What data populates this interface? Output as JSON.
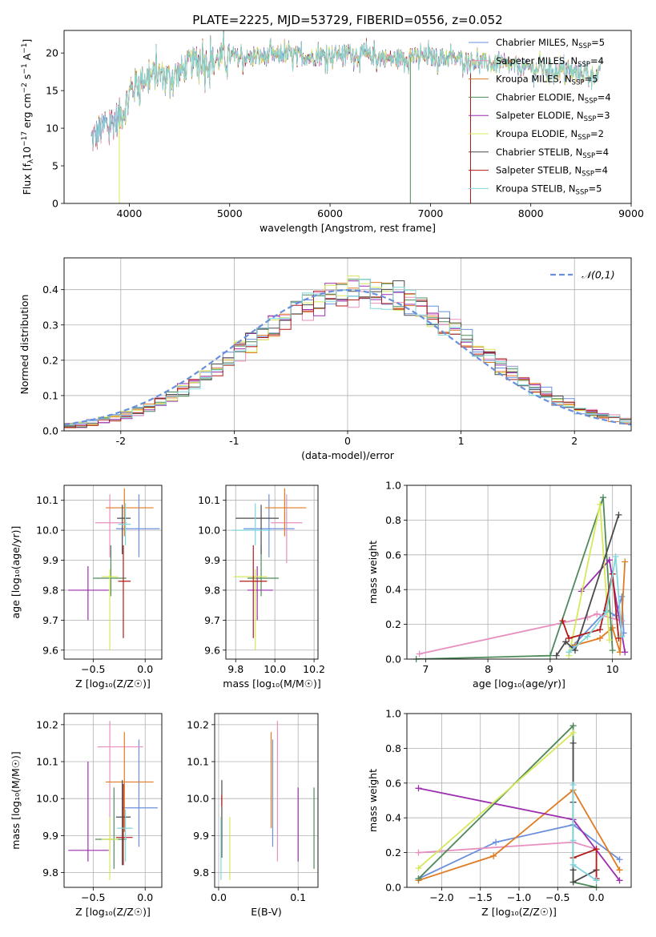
{
  "figure": {
    "title": "PLATE=2225, MJD=53729, FIBERID=0556, z=0.052"
  },
  "colors": {
    "chabrier_miles": "#6a8fdc",
    "salpeter_miles": "#e88fbf",
    "kroupa_miles": "#e07b22",
    "chabrier_elodie": "#4f8a5a",
    "salpeter_elodie": "#9b2fae",
    "kroupa_elodie": "#d6e85a",
    "chabrier_stelib": "#4a4a4a",
    "salpeter_stelib": "#b21a1a",
    "kroupa_stelib": "#7fd6dc",
    "normal": "#6a8fdc"
  },
  "chart_data": [
    {
      "id": "spectrum",
      "type": "line",
      "xlabel": "wavelength [Angstrom, rest frame]",
      "ylabel_parts": [
        "Flux [f",
        "λ",
        "10",
        "−17",
        " erg cm",
        "−2",
        " s",
        "−1",
        " A",
        "−1",
        "]"
      ],
      "xlim": [
        3350,
        9000
      ],
      "ylim": [
        0,
        23
      ],
      "xticks": [
        4000,
        5000,
        6000,
        7000,
        8000,
        9000
      ],
      "yticks": [
        0,
        5,
        10,
        15,
        20
      ],
      "legend": [
        {
          "key": "chabrier_miles",
          "base": "Chabrier MILES, N",
          "sub": "SSP",
          "val": "=5"
        },
        {
          "key": "salpeter_miles",
          "base": "Salpeter MILES, N",
          "sub": "SSP",
          "val": "=4"
        },
        {
          "key": "kroupa_miles",
          "base": "Kroupa MILES, N",
          "sub": "SSP",
          "val": "=5"
        },
        {
          "key": "chabrier_elodie",
          "base": "Chabrier ELODIE, N",
          "sub": "SSP",
          "val": "=4"
        },
        {
          "key": "salpeter_elodie",
          "base": "Salpeter ELODIE, N",
          "sub": "SSP",
          "val": "=3"
        },
        {
          "key": "kroupa_elodie",
          "base": "Kroupa ELODIE, N",
          "sub": "SSP",
          "val": "=2"
        },
        {
          "key": "chabrier_stelib",
          "base": "Chabrier STELIB, N",
          "sub": "SSP",
          "val": "=4"
        },
        {
          "key": "salpeter_stelib",
          "base": "Salpeter STELIB, N",
          "sub": "SSP",
          "val": "=4"
        },
        {
          "key": "kroupa_stelib",
          "base": "Kroupa STELIB, N",
          "sub": "SSP",
          "val": "=5"
        }
      ],
      "continuum": {
        "x": [
          3620,
          3700,
          3800,
          3900,
          3950,
          4000,
          4050,
          4100,
          4200,
          4300,
          4400,
          4500,
          4600,
          4700,
          4800,
          4900,
          5000,
          5200,
          5400,
          5600,
          5800,
          6000,
          6200,
          6400,
          6600,
          6800,
          7000,
          7200,
          7400,
          7600,
          7800,
          8000,
          8200,
          8400,
          8600,
          8700
        ],
        "y": [
          8.5,
          9.5,
          10.5,
          11.5,
          12.5,
          14.5,
          15.5,
          16.5,
          16.8,
          17.2,
          16.8,
          17.5,
          18.5,
          19.0,
          18.8,
          19.3,
          19.5,
          19.3,
          19.6,
          19.8,
          19.4,
          19.8,
          20.0,
          19.6,
          19.2,
          19.5,
          19.5,
          19.3,
          19.0,
          18.6,
          18.3,
          18.0,
          17.8,
          17.5,
          17.2,
          17.0
        ]
      },
      "drops": [
        {
          "key": "kroupa_elodie",
          "x": 3900
        },
        {
          "key": "chabrier_elodie",
          "x": 6800
        },
        {
          "key": "salpeter_stelib",
          "x": 7400
        }
      ]
    },
    {
      "id": "residuals",
      "type": "histogram",
      "xlabel": "(data-model)/error",
      "ylabel": "Normed distribution",
      "xlim": [
        -2.5,
        2.5
      ],
      "ylim": [
        0,
        0.49
      ],
      "xticks": [
        -2,
        -1,
        0,
        1,
        2
      ],
      "yticks": [
        0.0,
        0.1,
        0.2,
        0.3,
        0.4
      ],
      "ytick_labels": [
        "0.0",
        "0.1",
        "0.2",
        "0.3",
        "0.4"
      ],
      "legend_label": "𝒩(0,1)",
      "bin_width": 0.1,
      "bin_start": -2.5,
      "series_keys": [
        "chabrier_miles",
        "salpeter_miles",
        "kroupa_miles",
        "chabrier_elodie",
        "salpeter_elodie",
        "kroupa_elodie",
        "chabrier_stelib",
        "salpeter_stelib",
        "kroupa_stelib"
      ]
    },
    {
      "id": "age_vs_Z",
      "type": "errorbar",
      "xlabel": "Z [log₁₀(Z/Z☉)]",
      "ylabel": "age  [log₁₀(age/yr)]",
      "xlim": [
        -0.78,
        0.16
      ],
      "ylim": [
        9.57,
        10.15
      ],
      "xticks": [
        -0.5,
        0.0
      ],
      "xtick_labels": [
        "−0.5",
        "0.0"
      ],
      "yticks": [
        9.6,
        9.7,
        9.8,
        9.9,
        10.0,
        10.1
      ],
      "ytick_labels": [
        "9.6",
        "9.7",
        "9.8",
        "9.9",
        "10.0",
        "10.1"
      ],
      "points": [
        {
          "key": "chabrier_miles",
          "x": -0.06,
          "y": 10.005,
          "xlo": -0.28,
          "xhi": 0.14,
          "ylo": 9.91,
          "yhi": 10.12
        },
        {
          "key": "salpeter_miles",
          "x": -0.34,
          "y": 10.025,
          "xlo": -0.48,
          "xhi": -0.18,
          "ylo": 9.91,
          "yhi": 10.12
        },
        {
          "key": "kroupa_miles",
          "x": -0.2,
          "y": 10.075,
          "xlo": -0.38,
          "xhi": 0.08,
          "ylo": 9.98,
          "yhi": 10.14
        },
        {
          "key": "chabrier_elodie",
          "x": -0.33,
          "y": 9.84,
          "xlo": -0.5,
          "xhi": -0.18,
          "ylo": 9.78,
          "yhi": 9.95
        },
        {
          "key": "salpeter_elodie",
          "x": -0.55,
          "y": 9.8,
          "xlo": -0.74,
          "xhi": -0.35,
          "ylo": 9.7,
          "yhi": 9.88
        },
        {
          "key": "kroupa_elodie",
          "x": -0.34,
          "y": 9.845,
          "xlo": -0.42,
          "xhi": -0.26,
          "ylo": 9.6,
          "yhi": 9.87
        },
        {
          "key": "chabrier_stelib",
          "x": -0.22,
          "y": 10.04,
          "xlo": -0.27,
          "xhi": -0.14,
          "ylo": 9.92,
          "yhi": 10.085
        },
        {
          "key": "salpeter_stelib",
          "x": -0.21,
          "y": 9.83,
          "xlo": -0.26,
          "xhi": -0.14,
          "ylo": 9.64,
          "yhi": 9.95
        },
        {
          "key": "kroupa_stelib",
          "x": -0.19,
          "y": 10.02,
          "xlo": -0.26,
          "xhi": -0.14,
          "ylo": 9.95,
          "yhi": 10.09
        }
      ]
    },
    {
      "id": "age_vs_mass",
      "type": "errorbar",
      "xlabel": "mass [log₁₀(M/M☉)]",
      "ylabel": "",
      "xlim": [
        9.75,
        10.22
      ],
      "ylim": [
        9.57,
        10.15
      ],
      "xticks": [
        9.8,
        10.0,
        10.2
      ],
      "xtick_labels": [
        "9.8",
        "10.0",
        "10.2"
      ],
      "yticks": [
        9.6,
        9.7,
        9.8,
        9.9,
        10.0,
        10.1
      ],
      "ytick_labels": [
        "9.6",
        "9.7",
        "9.8",
        "9.9",
        "10.0",
        "10.1"
      ],
      "points": [
        {
          "key": "chabrier_miles",
          "x": 9.97,
          "y": 10.005,
          "xlo": 9.84,
          "xhi": 10.1,
          "ylo": 9.91,
          "yhi": 10.12
        },
        {
          "key": "salpeter_miles",
          "x": 10.06,
          "y": 10.025,
          "xlo": 9.98,
          "xhi": 10.14,
          "ylo": 9.89,
          "yhi": 10.12
        },
        {
          "key": "kroupa_miles",
          "x": 10.05,
          "y": 10.075,
          "xlo": 9.95,
          "xhi": 10.16,
          "ylo": 9.98,
          "yhi": 10.14
        },
        {
          "key": "chabrier_elodie",
          "x": 9.93,
          "y": 9.84,
          "xlo": 9.86,
          "xhi": 10.02,
          "ylo": 9.78,
          "yhi": 9.95
        },
        {
          "key": "salpeter_elodie",
          "x": 9.91,
          "y": 9.8,
          "xlo": 9.86,
          "xhi": 9.99,
          "ylo": 9.7,
          "yhi": 9.88
        },
        {
          "key": "kroupa_elodie",
          "x": 9.9,
          "y": 9.845,
          "xlo": 9.79,
          "xhi": 9.96,
          "ylo": 9.6,
          "yhi": 9.87
        },
        {
          "key": "chabrier_stelib",
          "x": 9.93,
          "y": 10.04,
          "xlo": 9.8,
          "xhi": 10.02,
          "ylo": 9.92,
          "yhi": 10.085
        },
        {
          "key": "salpeter_stelib",
          "x": 9.89,
          "y": 9.83,
          "xlo": 9.82,
          "xhi": 9.96,
          "ylo": 9.64,
          "yhi": 9.95
        },
        {
          "key": "kroupa_stelib",
          "x": 9.9,
          "y": 10.0,
          "xlo": 9.78,
          "xhi": 9.98,
          "ylo": 9.95,
          "yhi": 10.09
        }
      ]
    },
    {
      "id": "mw_vs_age",
      "type": "line",
      "xlabel": "age  [log₁₀(age/yr)]",
      "ylabel": "mass weight",
      "xlim": [
        6.7,
        10.3
      ],
      "ylim": [
        0,
        1.0
      ],
      "xticks": [
        7,
        8,
        9,
        10
      ],
      "xtick_labels": [
        "7",
        "8",
        "9",
        "10"
      ],
      "yticks": [
        0.0,
        0.2,
        0.4,
        0.6,
        0.8,
        1.0
      ],
      "ytick_labels": [
        "0.0",
        "0.2",
        "0.4",
        "0.6",
        "0.8",
        "1.0"
      ],
      "series": [
        {
          "key": "chabrier_miles",
          "x": [
            9.35,
            9.9,
            10.05,
            10.15,
            10.18
          ],
          "y": [
            0.07,
            0.28,
            0.25,
            0.36,
            0.15
          ]
        },
        {
          "key": "salpeter_miles",
          "x": [
            6.9,
            9.6,
            9.75,
            10.15
          ],
          "y": [
            0.03,
            0.24,
            0.26,
            0.22
          ]
        },
        {
          "key": "kroupa_miles",
          "x": [
            9.4,
            9.8,
            10.0,
            10.12,
            10.2
          ],
          "y": [
            0.08,
            0.12,
            0.18,
            0.04,
            0.56
          ]
        },
        {
          "key": "chabrier_elodie",
          "x": [
            6.85,
            9.0,
            9.85,
            10.0
          ],
          "y": [
            0.0,
            0.02,
            0.93,
            0.05
          ]
        },
        {
          "key": "salpeter_elodie",
          "x": [
            9.5,
            9.95,
            10.2
          ],
          "y": [
            0.39,
            0.57,
            0.04
          ]
        },
        {
          "key": "kroupa_elodie",
          "x": [
            9.3,
            9.8,
            9.95
          ],
          "y": [
            0.02,
            0.89,
            0.11
          ]
        },
        {
          "key": "chabrier_stelib",
          "x": [
            9.1,
            9.25,
            9.4,
            10.1
          ],
          "y": [
            0.02,
            0.1,
            0.05,
            0.83
          ]
        },
        {
          "key": "salpeter_stelib",
          "x": [
            9.2,
            9.3,
            9.8,
            10.0,
            10.1
          ],
          "y": [
            0.22,
            0.12,
            0.17,
            0.49,
            0.12
          ]
        },
        {
          "key": "kroupa_stelib",
          "x": [
            9.3,
            9.6,
            9.9,
            10.05,
            10.15
          ],
          "y": [
            0.04,
            0.13,
            0.27,
            0.59,
            0.13
          ]
        }
      ]
    },
    {
      "id": "mass_vs_Z",
      "type": "errorbar",
      "xlabel": "Z [log₁₀(Z/Z☉)]",
      "ylabel": "mass [log₁₀(M/M☉)]",
      "xlim": [
        -0.78,
        0.16
      ],
      "ylim": [
        9.76,
        10.23
      ],
      "xticks": [
        -0.5,
        0.0
      ],
      "xtick_labels": [
        "−0.5",
        "0.0"
      ],
      "yticks": [
        9.8,
        9.9,
        10.0,
        10.1,
        10.2
      ],
      "ytick_labels": [
        "9.8",
        "9.9",
        "10.0",
        "10.1",
        "10.2"
      ],
      "points": [
        {
          "key": "chabrier_miles",
          "x": -0.06,
          "y": 9.975,
          "xlo": -0.22,
          "xhi": 0.12,
          "ylo": 9.87,
          "yhi": 10.16
        },
        {
          "key": "salpeter_miles",
          "x": -0.34,
          "y": 10.14,
          "xlo": -0.46,
          "xhi": -0.02,
          "ylo": 9.85,
          "yhi": 10.21
        },
        {
          "key": "kroupa_miles",
          "x": -0.2,
          "y": 10.045,
          "xlo": -0.38,
          "xhi": 0.08,
          "ylo": 9.91,
          "yhi": 10.18
        },
        {
          "key": "chabrier_elodie",
          "x": -0.3,
          "y": 9.89,
          "xlo": -0.48,
          "xhi": -0.18,
          "ylo": 9.81,
          "yhi": 10.03
        },
        {
          "key": "salpeter_elodie",
          "x": -0.55,
          "y": 9.86,
          "xlo": -0.74,
          "xhi": -0.35,
          "ylo": 9.83,
          "yhi": 10.1
        },
        {
          "key": "kroupa_elodie",
          "x": -0.34,
          "y": 9.89,
          "xlo": -0.42,
          "xhi": -0.26,
          "ylo": 9.78,
          "yhi": 9.95
        },
        {
          "key": "chabrier_stelib",
          "x": -0.22,
          "y": 9.95,
          "xlo": -0.28,
          "xhi": -0.14,
          "ylo": 9.82,
          "yhi": 10.05
        },
        {
          "key": "salpeter_stelib",
          "x": -0.21,
          "y": 9.895,
          "xlo": -0.28,
          "xhi": -0.12,
          "ylo": 9.82,
          "yhi": 10.04
        },
        {
          "key": "kroupa_stelib",
          "x": -0.19,
          "y": 9.92,
          "xlo": -0.27,
          "xhi": -0.12,
          "ylo": 9.83,
          "yhi": 9.97
        }
      ]
    },
    {
      "id": "mass_vs_ebv",
      "type": "errorbar",
      "xlabel": "E(B-V)",
      "ylabel": "",
      "xlim": [
        -0.005,
        0.125
      ],
      "ylim": [
        9.76,
        10.23
      ],
      "xticks": [
        0.0,
        0.1
      ],
      "xtick_labels": [
        "0.0",
        "0.1"
      ],
      "yticks": [
        9.8,
        9.9,
        10.0,
        10.1,
        10.2
      ],
      "ytick_labels": [
        "9.8",
        "9.9",
        "10.0",
        "10.1",
        "10.2"
      ],
      "points": [
        {
          "key": "chabrier_miles",
          "x": 0.068,
          "y": 9.975,
          "ylo": 9.87,
          "yhi": 10.16
        },
        {
          "key": "salpeter_miles",
          "x": 0.074,
          "y": 10.14,
          "ylo": 9.83,
          "yhi": 10.21
        },
        {
          "key": "kroupa_miles",
          "x": 0.066,
          "y": 10.045,
          "ylo": 9.92,
          "yhi": 10.18
        },
        {
          "key": "chabrier_elodie",
          "x": 0.12,
          "y": 9.89,
          "ylo": 9.81,
          "yhi": 10.03
        },
        {
          "key": "salpeter_elodie",
          "x": 0.1,
          "y": 9.86,
          "ylo": 9.83,
          "yhi": 10.03
        },
        {
          "key": "kroupa_elodie",
          "x": 0.014,
          "y": 9.89,
          "ylo": 9.78,
          "yhi": 9.95
        },
        {
          "key": "chabrier_stelib",
          "x": 0.004,
          "y": 9.95,
          "ylo": 9.84,
          "yhi": 10.05
        },
        {
          "key": "salpeter_stelib",
          "x": 0.004,
          "y": 9.995,
          "ylo": 9.98,
          "yhi": 10.01
        },
        {
          "key": "kroupa_stelib",
          "x": 0.003,
          "y": 9.88,
          "ylo": 9.78,
          "yhi": 9.95
        }
      ]
    },
    {
      "id": "mw_vs_Z",
      "type": "line",
      "xlabel": "Z [log₁₀(Z/Z☉)]",
      "ylabel": "mass weight",
      "xlim": [
        -2.45,
        0.45
      ],
      "ylim": [
        0,
        1.0
      ],
      "xticks": [
        -2.0,
        -1.5,
        -1.0,
        -0.5,
        0.0
      ],
      "xtick_labels": [
        "−2.0",
        "−1.5",
        "−1.0",
        "−0.5",
        "0.0"
      ],
      "yticks": [
        0.0,
        0.2,
        0.4,
        0.6,
        0.8,
        1.0
      ],
      "ytick_labels": [
        "0.0",
        "0.2",
        "0.4",
        "0.6",
        "0.8",
        "1.0"
      ],
      "series": [
        {
          "key": "chabrier_miles",
          "x": [
            -2.3,
            -1.3,
            -0.3,
            0.3
          ],
          "y": [
            0.05,
            0.26,
            0.36,
            0.16
          ]
        },
        {
          "key": "salpeter_miles",
          "x": [
            -2.3,
            -0.3,
            0.0
          ],
          "y": [
            0.2,
            0.26,
            0.22
          ]
        },
        {
          "key": "kroupa_miles",
          "x": [
            -2.3,
            -1.33,
            -0.3,
            0.3
          ],
          "y": [
            0.04,
            0.18,
            0.56,
            0.1
          ]
        },
        {
          "key": "chabrier_elodie",
          "x": [
            -2.3,
            -0.3,
            -0.3,
            0.0
          ],
          "y": [
            0.05,
            0.93,
            0.03,
            0.0
          ]
        },
        {
          "key": "salpeter_elodie",
          "x": [
            -2.3,
            -0.3,
            0.3
          ],
          "y": [
            0.57,
            0.39,
            0.04
          ]
        },
        {
          "key": "kroupa_elodie",
          "x": [
            -2.3,
            -0.3
          ],
          "y": [
            0.11,
            0.89
          ]
        },
        {
          "key": "chabrier_stelib",
          "x": [
            -0.3,
            -0.3,
            -0.3,
            -0.3,
            0.0
          ],
          "y": [
            0.83,
            0.49,
            0.1,
            0.03,
            0.1
          ]
        },
        {
          "key": "salpeter_stelib",
          "x": [
            -0.3,
            0.0,
            0.0
          ],
          "y": [
            0.17,
            0.22,
            0.05
          ]
        },
        {
          "key": "kroupa_stelib",
          "x": [
            -0.3,
            -0.3,
            -0.3,
            0.0
          ],
          "y": [
            0.59,
            0.27,
            0.13,
            0.04
          ]
        }
      ]
    }
  ]
}
